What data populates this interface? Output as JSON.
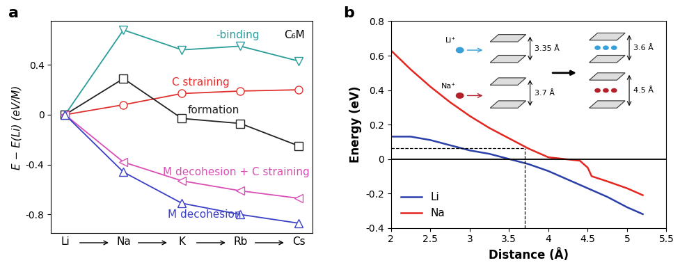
{
  "chart_data": [
    {
      "type": "line",
      "panel_label": "a",
      "note": "C₆M",
      "categories": [
        "Li",
        "Na",
        "K",
        "Rb",
        "Cs"
      ],
      "y_label": "E − E(Li) (eV/M)",
      "ylim": [
        -0.95,
        0.75
      ],
      "yticks": [
        -0.8,
        -0.4,
        0,
        0.4
      ],
      "series": [
        {
          "name": "-binding",
          "color": "#2a9d9a",
          "marker": "triangle_down",
          "values": [
            0,
            0.68,
            0.52,
            0.55,
            0.43
          ]
        },
        {
          "name": "C straining",
          "color": "#e0312e",
          "marker": "circle",
          "values": [
            0,
            0.08,
            0.17,
            0.19,
            0.2
          ]
        },
        {
          "name": "formation",
          "color": "#222222",
          "marker": "square",
          "values": [
            0,
            0.29,
            -0.03,
            -0.07,
            -0.25
          ]
        },
        {
          "name": "M decohesion + C straining",
          "color": "#d94fb5",
          "marker": "triangle_left",
          "values": [
            0,
            -0.38,
            -0.53,
            -0.61,
            -0.67
          ]
        },
        {
          "name": "M decohesion",
          "color": "#3a3fc4",
          "marker": "triangle_up",
          "values": [
            0,
            -0.46,
            -0.71,
            -0.8,
            -0.87
          ]
        }
      ]
    },
    {
      "type": "line",
      "panel_label": "b",
      "x_label": "Distance (Å)",
      "y_label": "Energy (eV)",
      "xlim": [
        2,
        5.5
      ],
      "xticks": [
        2,
        2.5,
        3,
        3.5,
        4,
        4.5,
        5,
        5.5
      ],
      "ylim": [
        -0.4,
        0.8
      ],
      "yticks": [
        -0.4,
        -0.2,
        0,
        0.2,
        0.4,
        0.6,
        0.8
      ],
      "legend": "lower left",
      "hlines": [
        0
      ],
      "guide": {
        "x": 3.7,
        "y": 0.065
      },
      "series": [
        {
          "name": "Li",
          "color": "#2b3fa8",
          "x": [
            2,
            2.25,
            2.5,
            2.75,
            3,
            3.25,
            3.5,
            3.75,
            4,
            4.25,
            4.5,
            4.75,
            5,
            5.2
          ],
          "values": [
            0.13,
            0.13,
            0.11,
            0.08,
            0.05,
            0.03,
            0.0,
            -0.03,
            -0.07,
            -0.12,
            -0.17,
            -0.22,
            -0.28,
            -0.32
          ]
        },
        {
          "name": "Na",
          "color": "#e3261f",
          "x": [
            2,
            2.25,
            2.5,
            2.75,
            3,
            3.25,
            3.5,
            3.75,
            4,
            4.2,
            4.4,
            4.5,
            4.55,
            4.75,
            5,
            5.2
          ],
          "values": [
            0.63,
            0.52,
            0.42,
            0.33,
            0.25,
            0.18,
            0.12,
            0.06,
            0.01,
            0.0,
            -0.01,
            -0.05,
            -0.1,
            -0.13,
            -0.17,
            -0.21
          ]
        }
      ],
      "insets": [
        {
          "ion": "Li⁺",
          "color": "#3aa0d8",
          "before": "3.35 Å",
          "after": "3.6 Å",
          "gap_before": 3.35,
          "gap_after": 3.6
        },
        {
          "ion": "Na⁺",
          "color": "#b3202a",
          "gap_before": 3.7,
          "gap_after": 4.5,
          "before": "3.7 Å",
          "after": "4.5 Å"
        }
      ]
    }
  ]
}
